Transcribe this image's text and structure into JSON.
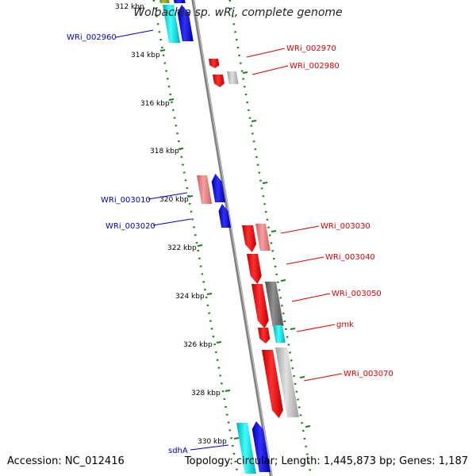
{
  "title": "Wolbachia sp. wRi, complete genome",
  "footer": {
    "accession": "Accession: NC_012416",
    "topology": "Topology: circular; Length: 1,445,873 bp; Genes: 1,187"
  },
  "scale_labels": [
    "312 kbp",
    "314 kbp",
    "316 kbp",
    "318 kbp",
    "320 kbp",
    "322 kbp",
    "324 kbp",
    "326 kbp",
    "328 kbp",
    "330 kbp"
  ],
  "gene_labels": [
    {
      "text": "WRi_002960",
      "strand": "forward"
    },
    {
      "text": "WRi_002970",
      "strand": "reverse"
    },
    {
      "text": "WRi_002980",
      "strand": "reverse"
    },
    {
      "text": "WRi_003010",
      "strand": "forward"
    },
    {
      "text": "WRi_003020",
      "strand": "forward"
    },
    {
      "text": "WRi_003030",
      "strand": "reverse"
    },
    {
      "text": "WRi_003040",
      "strand": "reverse"
    },
    {
      "text": "WRi_003050",
      "strand": "reverse"
    },
    {
      "text": "gmk",
      "strand": "reverse"
    },
    {
      "text": "WRi_003070",
      "strand": "reverse"
    },
    {
      "text": "sdhA",
      "strand": "forward"
    }
  ],
  "colors": {
    "forward_label": "#0000cc",
    "reverse_label": "#dd0000",
    "backbone": "#808080",
    "tick_green": "#1a7f1a",
    "feature_red": "#ff0000",
    "feature_pink": "#f08080",
    "feature_blue": "#0000ff",
    "feature_cyan": "#00e5e5",
    "feature_gray": "#c0c0c0",
    "feature_darkgray": "#707070"
  }
}
